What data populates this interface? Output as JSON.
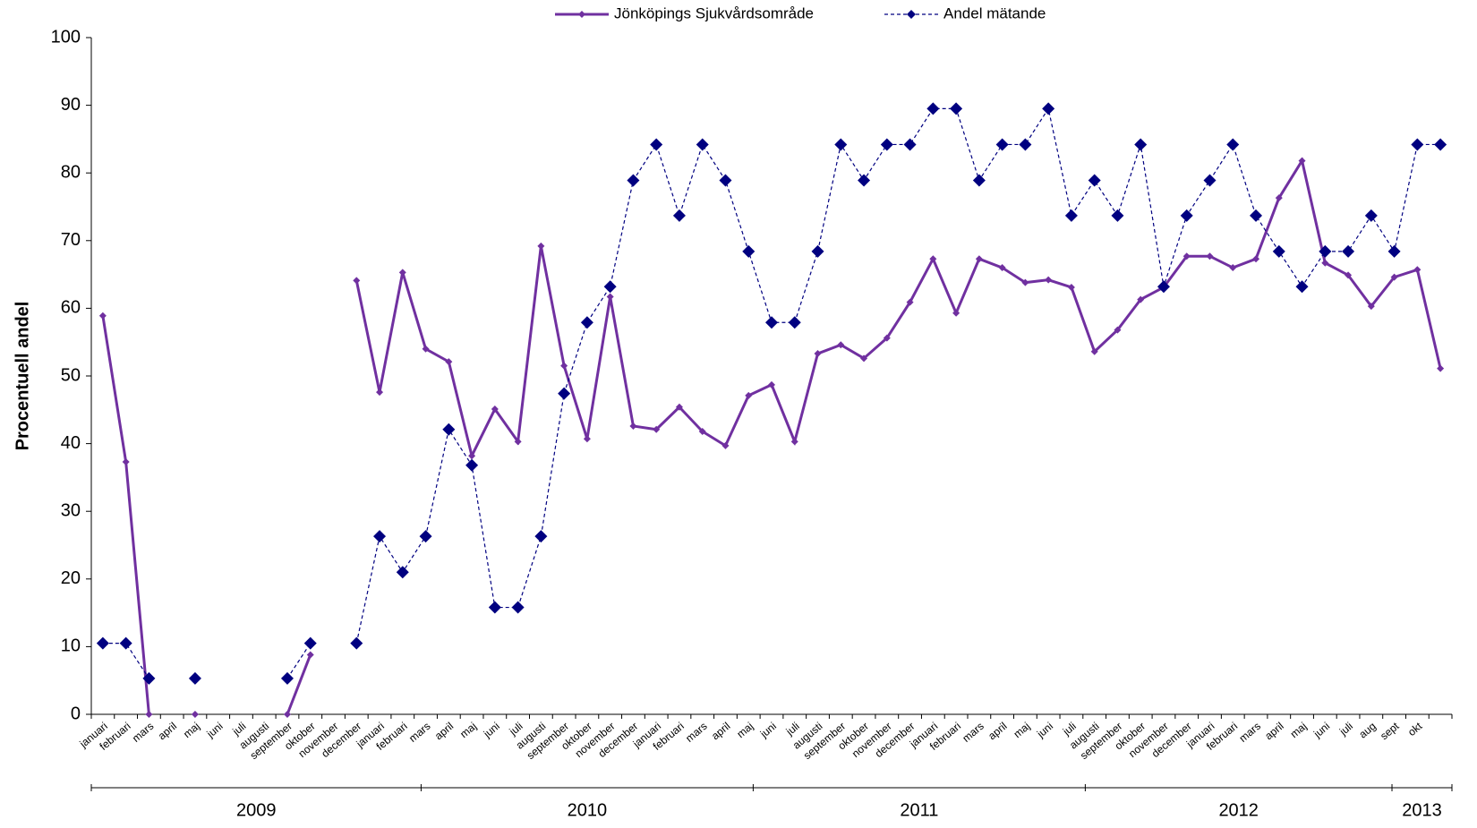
{
  "chart_data": {
    "type": "line",
    "y_label": "Procentuell andel",
    "categories": [
      "januari",
      "februari",
      "mars",
      "april",
      "maj",
      "juni",
      "juli",
      "augusti",
      "september",
      "oktober",
      "november",
      "december",
      "januari",
      "februari",
      "mars",
      "april",
      "maj",
      "juni",
      "juli",
      "augusti",
      "september",
      "oktober",
      "november",
      "december",
      "januari",
      "februari",
      "mars",
      "april",
      "maj",
      "juni",
      "juli",
      "augusti",
      "september",
      "oktober",
      "november",
      "december",
      "januari",
      "februari",
      "mars",
      "april",
      "maj",
      "juni",
      "juli",
      "augusti",
      "september",
      "oktober",
      "november",
      "december",
      "januari",
      "februari",
      "mars",
      "april",
      "maj",
      "juni",
      "juli",
      "aug",
      "sept",
      "okt",
      null
    ],
    "year_labels": [
      "2009",
      "2010",
      "2011",
      "2012",
      "2013"
    ],
    "series": [
      {
        "name": "Jönköpings Sjukvårdsområde",
        "color": "#7030a0",
        "line": "solid",
        "values": [
          58.9,
          37.3,
          0,
          null,
          0,
          null,
          null,
          null,
          0,
          8.8,
          null,
          64.1,
          47.6,
          65.3,
          54,
          52.1,
          38.2,
          45.1,
          40.3,
          69.2,
          51.5,
          40.7,
          61.7,
          42.6,
          42.1,
          45.4,
          41.8,
          39.7,
          47.1,
          48.7,
          40.3,
          53.3,
          54.6,
          52.6,
          55.6,
          60.9,
          67.3,
          59.3,
          67.3,
          66,
          63.8,
          64.2,
          63.1,
          53.6,
          56.8,
          61.3,
          63.1,
          67.7,
          67.7,
          66,
          67.3,
          76.3,
          81.8,
          66.7,
          64.9,
          60.3,
          64.6,
          65.7,
          51.1
        ]
      },
      {
        "name": "Andel mätande",
        "color": "#000080",
        "line": "dashed",
        "values": [
          10.5,
          10.5,
          5.3,
          null,
          5.3,
          null,
          null,
          null,
          5.3,
          10.5,
          null,
          10.5,
          26.3,
          21,
          26.3,
          42.1,
          36.8,
          15.8,
          15.8,
          26.3,
          47.4,
          57.9,
          63.2,
          78.9,
          84.2,
          73.7,
          84.2,
          78.9,
          68.4,
          57.9,
          57.9,
          68.4,
          84.2,
          78.9,
          84.2,
          84.2,
          89.5,
          89.5,
          78.9,
          84.2,
          84.2,
          89.5,
          73.7,
          78.9,
          73.7,
          84.2,
          63.2,
          73.7,
          78.9,
          84.2,
          73.7,
          68.4,
          63.2,
          68.4,
          68.4,
          73.7,
          68.4,
          84.2,
          84.2
        ]
      }
    ],
    "ylim": [
      0,
      100
    ],
    "yticks": [
      0,
      10,
      20,
      30,
      40,
      50,
      60,
      70,
      80,
      90,
      100
    ],
    "legend": "top"
  }
}
